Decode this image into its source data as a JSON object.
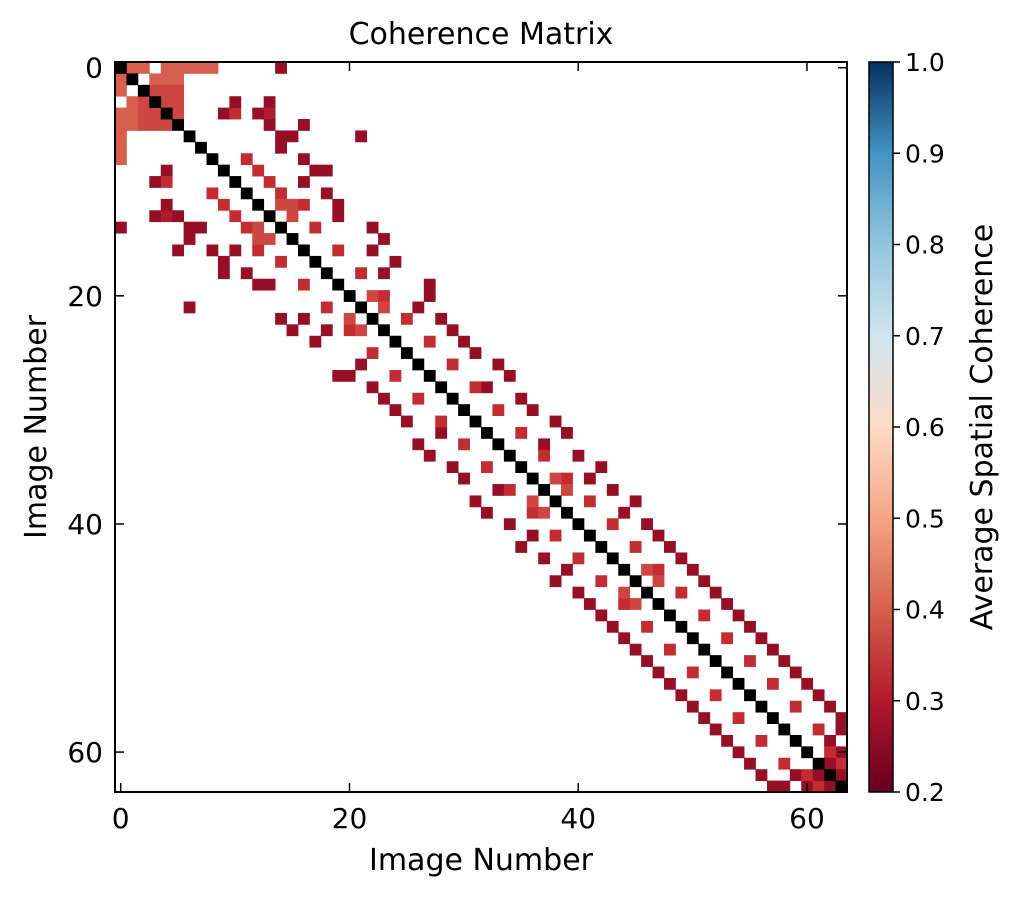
{
  "chart_data": {
    "type": "heatmap",
    "title": "Coherence Matrix",
    "xlabel": "Image Number",
    "ylabel": "Image Number",
    "n": 64,
    "x_ticks": [
      0,
      20,
      40,
      60
    ],
    "y_ticks": [
      0,
      20,
      40,
      60
    ],
    "colorbar": {
      "label": "Average Spatial Coherence",
      "min": 0.2,
      "max": 1.0,
      "ticks": [
        "1.0",
        "0.9",
        "0.8",
        "0.7",
        "0.6",
        "0.5",
        "0.4",
        "0.3",
        "0.2"
      ],
      "colormap": "RdBu",
      "display_threshold": 0.7
    },
    "diagonal_color": "#000000",
    "cells": [
      [
        0,
        1,
        0.5
      ],
      [
        0,
        2,
        0.5
      ],
      [
        1,
        3,
        0.5
      ],
      [
        1,
        4,
        0.5
      ],
      [
        1,
        5,
        0.5
      ],
      [
        0,
        6,
        0.5
      ],
      [
        0,
        7,
        0.5
      ],
      [
        0,
        8,
        0.5
      ],
      [
        0,
        14,
        0.3
      ],
      [
        2,
        3,
        0.45
      ],
      [
        3,
        4,
        0.45
      ],
      [
        3,
        5,
        0.45
      ],
      [
        4,
        5,
        0.45
      ],
      [
        2,
        4,
        0.45
      ],
      [
        2,
        5,
        0.45
      ],
      [
        2,
        0,
        0.5
      ],
      [
        4,
        0,
        0.5
      ],
      [
        3,
        1,
        0.5
      ],
      [
        5,
        1,
        0.5
      ],
      [
        4,
        2,
        0.5
      ],
      [
        0,
        5,
        0.5
      ],
      [
        0,
        6,
        0.5
      ],
      [
        0,
        7,
        0.5
      ],
      [
        0,
        8,
        0.5
      ],
      [
        9,
        4,
        0.3
      ],
      [
        10,
        4,
        0.4
      ],
      [
        13,
        3,
        0.3
      ],
      [
        13,
        4,
        0.35
      ],
      [
        13,
        5,
        0.3
      ],
      [
        14,
        6,
        0.3
      ],
      [
        17,
        9,
        0.3
      ],
      [
        14,
        14,
        0.3
      ],
      [
        3,
        10,
        0.3
      ],
      [
        4,
        12,
        0.3
      ],
      [
        5,
        16,
        0.3
      ],
      [
        6,
        21,
        0.3
      ],
      [
        14,
        14,
        0.3
      ],
      [
        5,
        13,
        0.3
      ],
      [
        6,
        15,
        0.3
      ],
      [
        7,
        14,
        0.3
      ],
      [
        8,
        16,
        0.3
      ],
      [
        9,
        18,
        0.3
      ],
      [
        10,
        16,
        0.3
      ],
      [
        11,
        18,
        0.3
      ],
      [
        12,
        19,
        0.3
      ],
      [
        13,
        19,
        0.3
      ],
      [
        14,
        22,
        0.3
      ],
      [
        15,
        23,
        0.3
      ],
      [
        16,
        22,
        0.3
      ],
      [
        17,
        24,
        0.3
      ],
      [
        18,
        23,
        0.3
      ],
      [
        19,
        27,
        0.3
      ],
      [
        20,
        27,
        0.3
      ],
      [
        21,
        26,
        0.3
      ],
      [
        22,
        28,
        0.3
      ],
      [
        23,
        29,
        0.3
      ],
      [
        24,
        30,
        0.3
      ],
      [
        25,
        31,
        0.3
      ],
      [
        26,
        33,
        0.3
      ],
      [
        27,
        34,
        0.3
      ],
      [
        28,
        32,
        0.3
      ],
      [
        29,
        35,
        0.3
      ],
      [
        30,
        36,
        0.3
      ],
      [
        31,
        38,
        0.3
      ],
      [
        32,
        39,
        0.3
      ],
      [
        33,
        37,
        0.3
      ],
      [
        34,
        40,
        0.3
      ],
      [
        35,
        42,
        0.3
      ],
      [
        36,
        41,
        0.3
      ],
      [
        37,
        43,
        0.3
      ],
      [
        38,
        45,
        0.3
      ],
      [
        39,
        44,
        0.3
      ],
      [
        40,
        46,
        0.3
      ],
      [
        41,
        47,
        0.3
      ],
      [
        42,
        48,
        0.3
      ],
      [
        43,
        49,
        0.3
      ],
      [
        44,
        50,
        0.3
      ],
      [
        45,
        51,
        0.3
      ],
      [
        46,
        52,
        0.3
      ],
      [
        47,
        53,
        0.3
      ],
      [
        48,
        54,
        0.3
      ],
      [
        49,
        55,
        0.3
      ],
      [
        50,
        56,
        0.3
      ],
      [
        51,
        57,
        0.3
      ],
      [
        52,
        58,
        0.3
      ],
      [
        53,
        59,
        0.3
      ],
      [
        54,
        60,
        0.3
      ],
      [
        55,
        61,
        0.3
      ],
      [
        56,
        62,
        0.3
      ],
      [
        57,
        63,
        0.3
      ],
      [
        58,
        63,
        0.3
      ],
      [
        59,
        62,
        0.3
      ],
      [
        60,
        63,
        0.3
      ],
      [
        8,
        11,
        0.4
      ],
      [
        9,
        12,
        0.4
      ],
      [
        10,
        13,
        0.4
      ],
      [
        11,
        14,
        0.4
      ],
      [
        12,
        16,
        0.4
      ],
      [
        14,
        17,
        0.4
      ],
      [
        16,
        19,
        0.4
      ],
      [
        18,
        21,
        0.4
      ],
      [
        20,
        23,
        0.4
      ],
      [
        22,
        25,
        0.4
      ],
      [
        24,
        27,
        0.4
      ],
      [
        26,
        29,
        0.4
      ],
      [
        28,
        31,
        0.4
      ],
      [
        30,
        33,
        0.4
      ],
      [
        32,
        35,
        0.4
      ],
      [
        34,
        37,
        0.4
      ],
      [
        36,
        39,
        0.4
      ],
      [
        38,
        41,
        0.4
      ],
      [
        40,
        43,
        0.4
      ],
      [
        42,
        45,
        0.4
      ],
      [
        44,
        47,
        0.4
      ],
      [
        46,
        49,
        0.4
      ],
      [
        48,
        51,
        0.4
      ],
      [
        50,
        53,
        0.4
      ],
      [
        52,
        55,
        0.4
      ],
      [
        54,
        57,
        0.4
      ],
      [
        56,
        59,
        0.4
      ],
      [
        58,
        61,
        0.4
      ],
      [
        60,
        62,
        0.4
      ],
      [
        61,
        63,
        0.4
      ],
      [
        12,
        14,
        0.45
      ],
      [
        12,
        15,
        0.45
      ],
      [
        13,
        15,
        0.45
      ],
      [
        20,
        22,
        0.45
      ],
      [
        21,
        23,
        0.45
      ],
      [
        36,
        38,
        0.45
      ],
      [
        37,
        39,
        0.45
      ],
      [
        44,
        46,
        0.45
      ],
      [
        45,
        47,
        0.45
      ],
      [
        61,
        62,
        0.3
      ],
      [
        62,
        63,
        0.3
      ]
    ]
  }
}
